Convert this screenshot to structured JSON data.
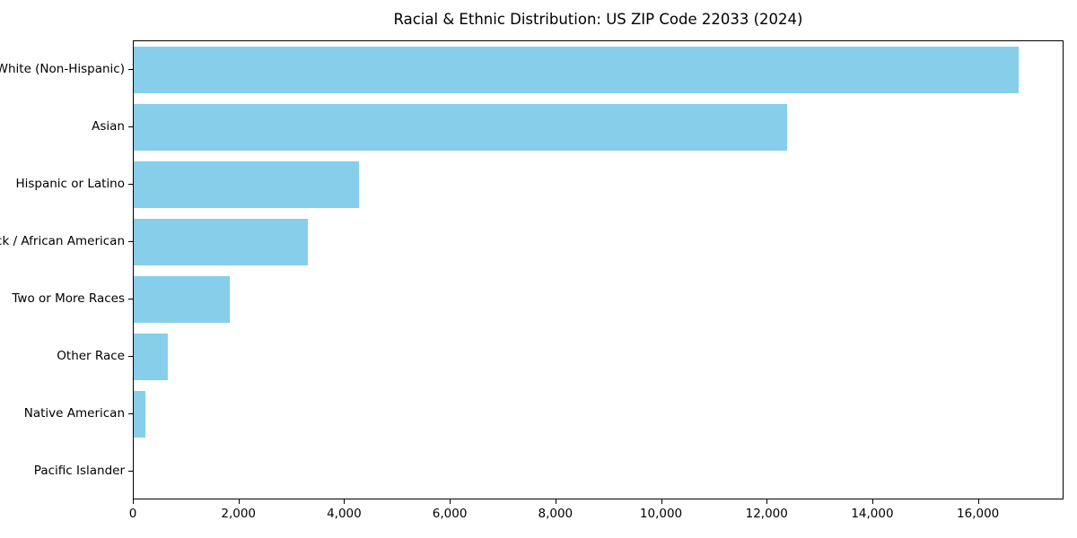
{
  "chart_data": {
    "type": "bar",
    "orientation": "horizontal",
    "title": "Racial & Ethnic Distribution: US ZIP Code 22033 (2024)",
    "categories": [
      "White (Non-Hispanic)",
      "Asian",
      "Hispanic or Latino",
      "Black / African American",
      "Two or More Races",
      "Other Race",
      "Native American",
      "Pacific Islander"
    ],
    "values": [
      16790,
      12400,
      4270,
      3300,
      1830,
      650,
      220,
      0
    ],
    "bar_color": "#87CEEB",
    "xlabel": "",
    "ylabel": "",
    "xlim": [
      0,
      17620
    ],
    "x_ticks": [
      0,
      2000,
      4000,
      6000,
      8000,
      10000,
      12000,
      14000,
      16000
    ],
    "x_tick_labels": [
      "0",
      "2,000",
      "4,000",
      "6,000",
      "8,000",
      "10,000",
      "12,000",
      "14,000",
      "16,000"
    ],
    "grid": false,
    "legend_position": "none",
    "frame_color": "#000000",
    "background_color": "#ffffff"
  }
}
